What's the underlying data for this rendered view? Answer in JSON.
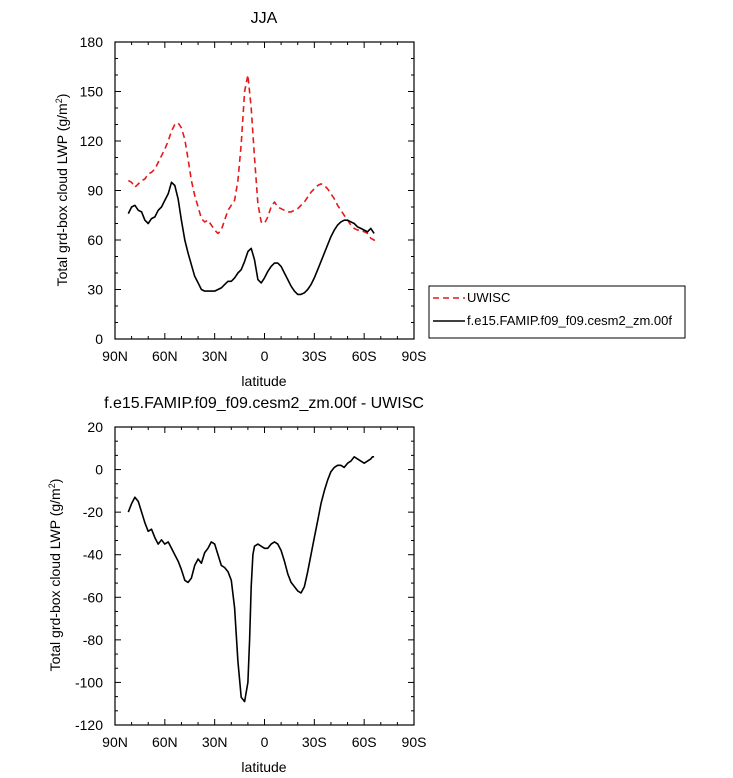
{
  "chart_data": [
    {
      "type": "line",
      "title": "JJA",
      "xlabel": "latitude",
      "ylabel": "Total grd-box cloud LWP",
      "ylabel_units": "(g/m",
      "ylabel_units_sup": "2",
      "ylabel_units_close": ")",
      "xlim": [
        90,
        -90
      ],
      "ylim": [
        0,
        180
      ],
      "xticks": [
        90,
        60,
        30,
        0,
        -30,
        -60,
        -90
      ],
      "xtick_labels": [
        "90N",
        "60N",
        "30N",
        "0",
        "30S",
        "60S",
        "90S"
      ],
      "yticks": [
        0,
        30,
        60,
        90,
        120,
        150,
        180
      ],
      "ytick_labels": [
        "0",
        "30",
        "60",
        "90",
        "120",
        "150",
        "180"
      ],
      "legend_placement": "right",
      "series": [
        {
          "name": "UWISC",
          "color": "#e41a1c",
          "dash": "dashed",
          "x": [
            82,
            80,
            78,
            76,
            74,
            72,
            70,
            68,
            66,
            64,
            62,
            60,
            58,
            56,
            54,
            52,
            50,
            48,
            46,
            44,
            42,
            40,
            38,
            36,
            34,
            32,
            30,
            28,
            26,
            24,
            22,
            20,
            18,
            16,
            14,
            12,
            10,
            8,
            6,
            4,
            2,
            0,
            -2,
            -4,
            -6,
            -8,
            -10,
            -12,
            -14,
            -16,
            -18,
            -20,
            -22,
            -24,
            -26,
            -28,
            -30,
            -32,
            -34,
            -36,
            -38,
            -40,
            -42,
            -44,
            -46,
            -48,
            -50,
            -52,
            -54,
            -56,
            -58,
            -60,
            -62,
            -64,
            -66,
            -67
          ],
          "y": [
            96,
            95,
            92,
            94,
            96,
            97,
            100,
            101,
            103,
            107,
            111,
            115,
            120,
            126,
            130,
            131,
            128,
            121,
            109,
            96,
            87,
            80,
            73,
            71,
            72,
            69,
            66,
            64,
            66,
            72,
            78,
            81,
            84,
            96,
            118,
            150,
            160,
            140,
            110,
            82,
            71,
            70,
            74,
            80,
            83,
            80,
            79,
            78,
            77,
            77,
            78,
            79,
            81,
            83,
            86,
            89,
            91,
            93,
            94,
            93,
            91,
            88,
            85,
            81,
            78,
            75,
            72,
            69,
            67,
            66,
            66,
            65,
            64,
            61,
            60,
            59
          ]
        },
        {
          "name": "f.e15.FAMIP.f09_f09.cesm2_zm.00f",
          "color": "#000000",
          "dash": "solid",
          "x": [
            82,
            80,
            78,
            76,
            74,
            72,
            70,
            68,
            66,
            64,
            62,
            60,
            58,
            56,
            54,
            52,
            50,
            48,
            46,
            44,
            42,
            40,
            38,
            36,
            34,
            32,
            30,
            28,
            26,
            24,
            22,
            20,
            18,
            16,
            14,
            12,
            10,
            8,
            6,
            4,
            2,
            0,
            -2,
            -4,
            -6,
            -8,
            -10,
            -12,
            -14,
            -16,
            -18,
            -20,
            -22,
            -24,
            -26,
            -28,
            -30,
            -32,
            -34,
            -36,
            -38,
            -40,
            -42,
            -44,
            -46,
            -48,
            -50,
            -52,
            -54,
            -56,
            -58,
            -60,
            -62,
            -64,
            -66
          ],
          "y": [
            76,
            80,
            81,
            78,
            77,
            72,
            70,
            73,
            74,
            78,
            80,
            84,
            88,
            95,
            93,
            85,
            72,
            60,
            52,
            45,
            38,
            34,
            30,
            29,
            29,
            29,
            29,
            30,
            31,
            33,
            35,
            35,
            37,
            40,
            42,
            47,
            53,
            55,
            48,
            36,
            34,
            37,
            41,
            44,
            46,
            46,
            44,
            40,
            36,
            32,
            29,
            27,
            27,
            28,
            30,
            33,
            37,
            42,
            47,
            52,
            57,
            62,
            66,
            69,
            71,
            72,
            72,
            71,
            70,
            68,
            67,
            66,
            65,
            67,
            64
          ]
        }
      ]
    },
    {
      "type": "line",
      "title": "f.e15.FAMIP.f09_f09.cesm2_zm.00f - UWISC",
      "xlabel": "latitude",
      "ylabel": "Total grd-box cloud LWP",
      "ylabel_units": "(g/m",
      "ylabel_units_sup": "2",
      "ylabel_units_close": ")",
      "xlim": [
        90,
        -90
      ],
      "ylim": [
        -120,
        20
      ],
      "xticks": [
        90,
        60,
        30,
        0,
        -30,
        -60,
        -90
      ],
      "xtick_labels": [
        "90N",
        "60N",
        "30N",
        "0",
        "30S",
        "60S",
        "90S"
      ],
      "yticks": [
        -120,
        -100,
        -80,
        -60,
        -40,
        -20,
        0,
        20
      ],
      "ytick_labels": [
        "-120",
        "-100",
        "-80",
        "-60",
        "-40",
        "-20",
        "0",
        "20"
      ],
      "series": [
        {
          "color": "#000000",
          "dash": "solid",
          "x": [
            82,
            80,
            78,
            76,
            74,
            72,
            70,
            68,
            66,
            64,
            62,
            60,
            58,
            56,
            54,
            52,
            50,
            48,
            46,
            44,
            42,
            40,
            38,
            36,
            34,
            32,
            30,
            28,
            26,
            24,
            22,
            20,
            18,
            16,
            14,
            12,
            10,
            9,
            8,
            7,
            6,
            4,
            2,
            0,
            -2,
            -4,
            -6,
            -8,
            -10,
            -12,
            -14,
            -16,
            -18,
            -20,
            -22,
            -24,
            -26,
            -28,
            -30,
            -32,
            -34,
            -36,
            -38,
            -40,
            -42,
            -44,
            -46,
            -48,
            -50,
            -52,
            -54,
            -56,
            -58,
            -60,
            -62,
            -64,
            -65,
            -66
          ],
          "y": [
            -20,
            -16,
            -13,
            -15,
            -20,
            -25,
            -29,
            -28,
            -32,
            -35,
            -33,
            -35,
            -34,
            -37,
            -40,
            -43,
            -47,
            -52,
            -53,
            -51,
            -45,
            -42,
            -44,
            -39,
            -37,
            -34,
            -35,
            -40,
            -45,
            -46,
            -48,
            -52,
            -65,
            -90,
            -107,
            -109,
            -100,
            -80,
            -55,
            -40,
            -36,
            -35,
            -36,
            -37,
            -37,
            -35,
            -34,
            -35,
            -38,
            -43,
            -49,
            -53,
            -55,
            -57,
            -58,
            -55,
            -48,
            -40,
            -32,
            -24,
            -16,
            -10,
            -5,
            -1,
            1,
            2,
            2,
            1,
            3,
            4,
            6,
            5,
            4,
            3,
            4,
            5,
            6,
            6
          ]
        }
      ]
    }
  ]
}
